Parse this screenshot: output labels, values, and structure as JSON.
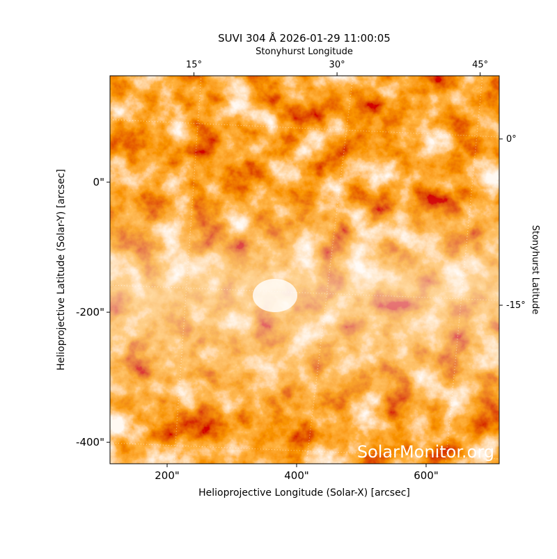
{
  "chart_data": {
    "type": "image",
    "title": "SUVI 304 Å 2026-01-29 11:00:05",
    "xlabel": "Helioprojective Longitude (Solar-X) [arcsec]",
    "ylabel": "Helioprojective Latitude (Solar-Y) [arcsec]",
    "x2label": "Stonyhurst Longitude",
    "y2label": "Stonyhurst Latitude",
    "watermark": "SolarMonitor.org",
    "xlim": [
      111.8,
      712.9
    ],
    "ylim": [
      -433,
      163.6
    ],
    "xticks": [
      {
        "value": 200,
        "label": "200\""
      },
      {
        "value": 400,
        "label": "400\""
      },
      {
        "value": 600,
        "label": "600\""
      }
    ],
    "yticks": [
      {
        "value": 0,
        "label": "0\""
      },
      {
        "value": -200,
        "label": "-200\""
      },
      {
        "value": -400,
        "label": "-400\""
      }
    ],
    "x2lim": [
      6.2,
      47
    ],
    "x2ticks": [
      {
        "value": 15,
        "label": "15°"
      },
      {
        "value": 30,
        "label": "30°"
      },
      {
        "value": 45,
        "label": "45°"
      }
    ],
    "y2lim": [
      -29.3,
      5.7
    ],
    "y2ticks": [
      {
        "value": 0,
        "label": "0°"
      },
      {
        "value": -15,
        "label": "-15°"
      }
    ]
  }
}
